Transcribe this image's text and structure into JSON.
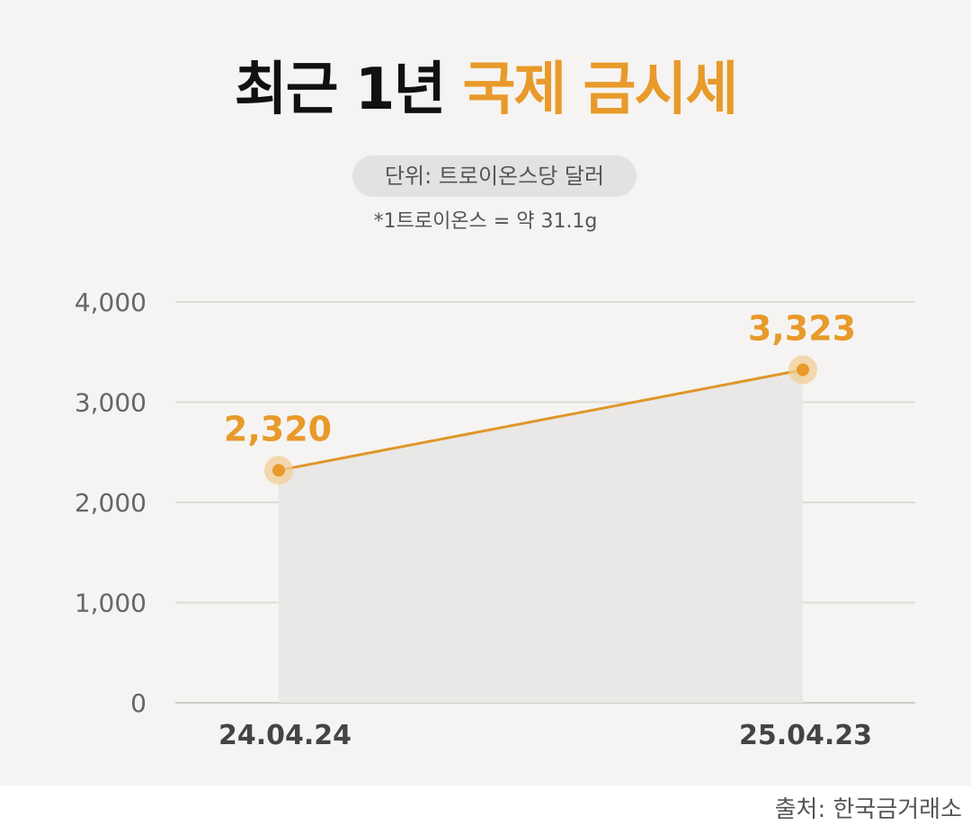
{
  "title": {
    "black": "최근 1년",
    "accent": "국제 금시세"
  },
  "unit": "단위: 트로이온스당 달러",
  "note": "*1트로이온스 = 약 31.1g",
  "source": "출처: 한국금거래소",
  "colors": {
    "accent": "#e89a2a",
    "line": "#e0962a",
    "background": "#f5f4f2"
  },
  "chart_data": {
    "type": "area",
    "categories": [
      "24.04.24",
      "25.04.23"
    ],
    "values": [
      2320,
      3323
    ],
    "value_labels": [
      "2,320",
      "3,323"
    ],
    "y_ticks": [
      "4,000",
      "3,000",
      "2,000",
      "1,000",
      "0"
    ],
    "y_tick_values": [
      4000,
      3000,
      2000,
      1000,
      0
    ],
    "ylim": [
      0,
      4000
    ],
    "grid": true
  }
}
